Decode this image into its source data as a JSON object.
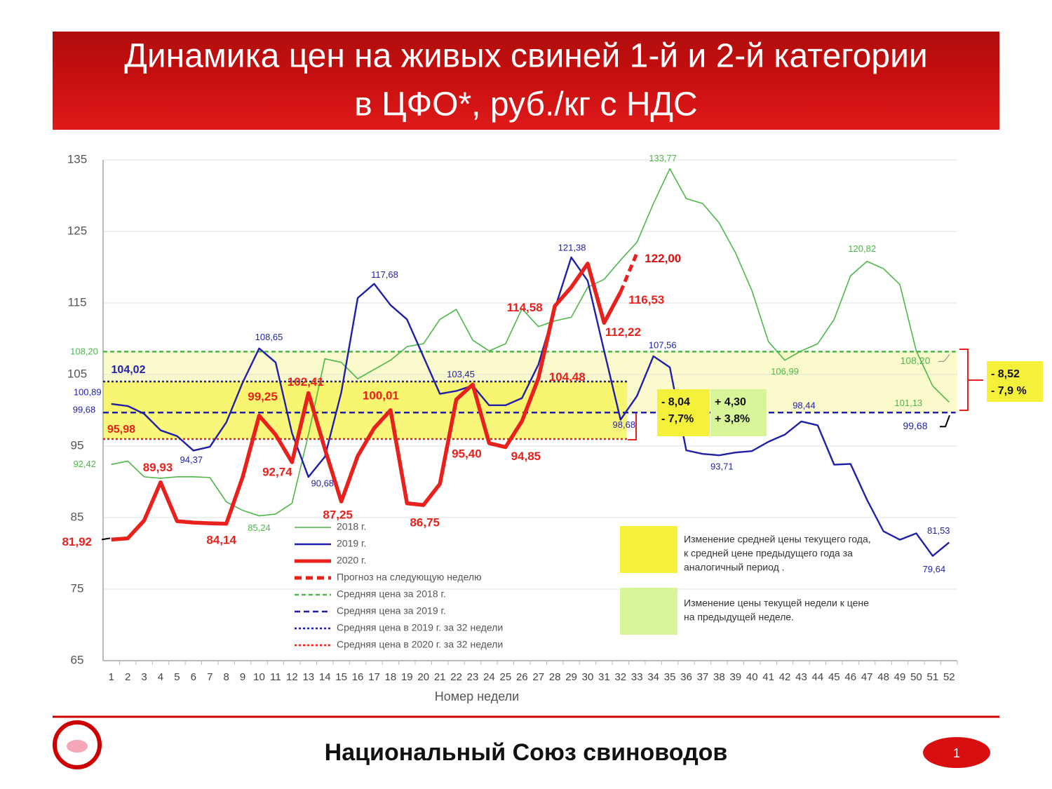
{
  "chart_data": {
    "type": "line",
    "title": [
      "Динамика цен на живых свиней 1-й и 2-й категории",
      "в ЦФО*, руб./кг с НДС"
    ],
    "x_label": "Номер недели",
    "x": [
      1,
      2,
      3,
      4,
      5,
      6,
      7,
      8,
      9,
      10,
      11,
      12,
      13,
      14,
      15,
      16,
      17,
      18,
      19,
      20,
      21,
      22,
      23,
      24,
      25,
      26,
      27,
      28,
      29,
      30,
      31,
      32,
      33,
      34,
      35,
      36,
      37,
      38,
      39,
      40,
      41,
      42,
      43,
      44,
      45,
      46,
      47,
      48,
      49,
      50,
      51,
      52
    ],
    "xlim": [
      0.5,
      52.5
    ],
    "ylim": [
      65,
      135
    ],
    "yticks": [
      65,
      75,
      85,
      95,
      105,
      115,
      125,
      135
    ],
    "grid": true,
    "series": [
      {
        "name": "2018 г.",
        "color": "#4cb848",
        "width": 1.6,
        "values": [
          92.42,
          92.9,
          90.7,
          90.5,
          90.7,
          90.7,
          90.6,
          87.2,
          86,
          85.24,
          85.5,
          87,
          96.6,
          107.2,
          106.7,
          104.4,
          105.7,
          107,
          108.9,
          109.3,
          112.7,
          114.1,
          109.8,
          108.3,
          109.3,
          114.2,
          111.7,
          112.5,
          113,
          117.2,
          118.3,
          121,
          123.5,
          128.9,
          133.77,
          129.6,
          128.9,
          126.2,
          122,
          116.7,
          109.6,
          106.99,
          108.3,
          109.3,
          112.7,
          118.8,
          120.82,
          119.8,
          117.6,
          108.3,
          103.4,
          101.13
        ],
        "value_labels": [
          "92,42",
          null,
          null,
          null,
          null,
          null,
          null,
          null,
          null,
          "85,24",
          null,
          null,
          null,
          null,
          null,
          null,
          null,
          null,
          null,
          null,
          null,
          null,
          null,
          null,
          null,
          null,
          null,
          null,
          null,
          null,
          null,
          null,
          null,
          null,
          "133,77",
          null,
          null,
          null,
          null,
          null,
          null,
          "106,99",
          null,
          null,
          null,
          null,
          "120,82",
          null,
          null,
          null,
          null,
          "101,13"
        ]
      },
      {
        "name": "2019 г.",
        "color": "#1f1fa8",
        "width": 2.4,
        "values": [
          100.89,
          100.6,
          99.5,
          97.2,
          96.4,
          94.37,
          94.9,
          98.3,
          103.9,
          108.65,
          106.7,
          96.8,
          90.68,
          93.5,
          102.5,
          115.7,
          117.68,
          114.7,
          112.7,
          107.5,
          102.3,
          102.7,
          103.45,
          100.7,
          100.7,
          101.7,
          106.4,
          114.2,
          121.38,
          118.1,
          108.3,
          98.68,
          102,
          107.56,
          106,
          94.4,
          93.9,
          93.71,
          94.1,
          94.3,
          95.6,
          96.6,
          98.44,
          97.9,
          92.4,
          92.5,
          87.5,
          83.1,
          81.9,
          82.8,
          79.64,
          81.53
        ],
        "value_labels": [
          "100,89",
          null,
          null,
          null,
          null,
          "94,37",
          null,
          null,
          null,
          "108,65",
          null,
          null,
          "90,68",
          null,
          null,
          null,
          "117,68",
          null,
          null,
          null,
          null,
          null,
          "103,45",
          null,
          null,
          null,
          null,
          null,
          "121,38",
          null,
          null,
          "98,68",
          null,
          "107,56",
          null,
          null,
          null,
          "93,71",
          null,
          null,
          null,
          null,
          "98,44",
          null,
          null,
          null,
          null,
          null,
          null,
          null,
          "79,64",
          "81,53"
        ]
      },
      {
        "name": "2020 г.",
        "color": "#e8211d",
        "width": 5.5,
        "values": [
          81.92,
          82.1,
          84.6,
          89.93,
          84.5,
          84.3,
          84.2,
          84.14,
          90.7,
          99.25,
          96.6,
          92.74,
          102.41,
          94.6,
          87.25,
          93.6,
          97.5,
          100.01,
          87.0,
          86.75,
          89.7,
          101.5,
          103.6,
          95.4,
          94.85,
          98.5,
          104.48,
          114.58,
          117.2,
          120.5,
          112.22,
          116.53,
          null,
          null,
          null,
          null,
          null,
          null,
          null,
          null,
          null,
          null,
          null,
          null,
          null,
          null,
          null,
          null,
          null,
          null,
          null,
          null
        ],
        "value_labels": [
          "81,92",
          null,
          null,
          "89,93",
          null,
          null,
          null,
          "84,14",
          null,
          "99,25",
          null,
          "92,74",
          "102,41",
          null,
          "87,25",
          null,
          null,
          "100,01",
          null,
          "86,75",
          null,
          null,
          null,
          "95,40",
          "94,85",
          null,
          "104,48",
          "114,58",
          null,
          null,
          "112,22",
          "116,53",
          null,
          null,
          null,
          null,
          null,
          null,
          null,
          null,
          null,
          null,
          null,
          null,
          null,
          null,
          null,
          null,
          null,
          null,
          null,
          null
        ]
      },
      {
        "name": "Прогноз на следующую неделю",
        "color": "#e8211d",
        "width": 5,
        "dash": "10 6",
        "values": [
          null,
          null,
          null,
          null,
          null,
          null,
          null,
          null,
          null,
          null,
          null,
          null,
          null,
          null,
          null,
          null,
          null,
          null,
          null,
          null,
          null,
          null,
          null,
          null,
          null,
          null,
          null,
          null,
          null,
          null,
          null,
          116.53,
          122.0,
          null,
          null,
          null,
          null,
          null,
          null,
          null,
          null,
          null,
          null,
          null,
          null,
          null,
          null,
          null,
          null,
          null,
          null,
          null
        ],
        "value_labels": [
          null,
          null,
          null,
          null,
          null,
          null,
          null,
          null,
          null,
          null,
          null,
          null,
          null,
          null,
          null,
          null,
          null,
          null,
          null,
          null,
          null,
          null,
          null,
          null,
          null,
          null,
          null,
          null,
          null,
          null,
          null,
          null,
          "122,00",
          null,
          null,
          null,
          null,
          null,
          null,
          null,
          null,
          null,
          null,
          null,
          null,
          null,
          null,
          null,
          null,
          null,
          null,
          null
        ]
      }
    ],
    "reference_lines": [
      {
        "name": "Средняя цена за 2018 г.",
        "value": 108.2,
        "label": "108,20",
        "end_label": "108,20",
        "color": "#4cb848",
        "dash": "6 4",
        "to": 52
      },
      {
        "name": "Средняя цена за 2019 г.",
        "value": 99.68,
        "label": "99,68",
        "end_label": "99,68",
        "color": "#1f1fa8",
        "dash": "8 5",
        "to": 52
      },
      {
        "name": "Средняя цена в 2019 г. за 32 недели",
        "value": 104.02,
        "label": "104,02",
        "color": "#1f1fa8",
        "dash": "3 3",
        "to": 32
      },
      {
        "name": "Средняя цена в 2020 г. за 32 недели",
        "value": 95.98,
        "label": "95,98",
        "color": "#e8211d",
        "dash": "3 3",
        "to": 32
      }
    ],
    "annotations": [
      {
        "lines": [
          "- 8,04",
          "- 7,7%"
        ],
        "color": "#f5f03a"
      },
      {
        "lines": [
          "+ 4,30",
          "+ 3,8%"
        ],
        "color": "#d8f59a"
      },
      {
        "lines": [
          "- 8,52",
          "- 7,9 %"
        ],
        "color": "#f5f03a"
      }
    ],
    "notes": [
      {
        "color": "#f5f03a",
        "lines": [
          "Изменение средней цены текущего года,",
          "к средней цене предыдущего года за",
          "аналогичный период ."
        ]
      },
      {
        "color": "#d8f59a",
        "lines": [
          "Изменение цены текущей недели к цене",
          "на предыдущей неделе."
        ]
      }
    ]
  },
  "footer": {
    "organization": "Национальный Союз свиноводов",
    "page": "1"
  }
}
